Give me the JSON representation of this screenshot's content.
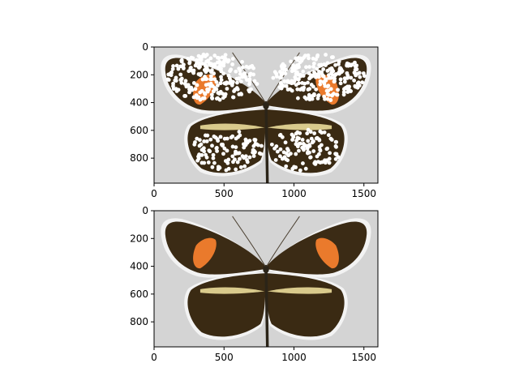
{
  "figure": {
    "panels": [
      {
        "id": "top",
        "image": "butterfly-with-white-dots",
        "xlim": [
          0,
          1600
        ],
        "ylim": [
          980,
          0
        ],
        "xticks": [
          0,
          500,
          1000,
          1500
        ],
        "yticks": [
          0,
          200,
          400,
          600,
          800
        ],
        "xtick_labels": [
          "0",
          "500",
          "1000",
          "1500"
        ],
        "ytick_labels": [
          "0",
          "200",
          "400",
          "600",
          "800"
        ]
      },
      {
        "id": "bottom",
        "image": "butterfly-original",
        "xlim": [
          0,
          1600
        ],
        "ylim": [
          980,
          0
        ],
        "xticks": [
          0,
          500,
          1000,
          1500
        ],
        "yticks": [
          0,
          200,
          400,
          600,
          800
        ],
        "xtick_labels": [
          "0",
          "500",
          "1000",
          "1500"
        ],
        "ytick_labels": [
          "0",
          "200",
          "400",
          "600",
          "800"
        ]
      }
    ],
    "colors": {
      "background": "#d4d4d4",
      "wing": "#3a2a14",
      "wing_edge": "#2a1e0e",
      "band": "#d8c88a",
      "patch": "#e8782a",
      "dots": "#ffffff",
      "body": "#2b2418"
    }
  }
}
